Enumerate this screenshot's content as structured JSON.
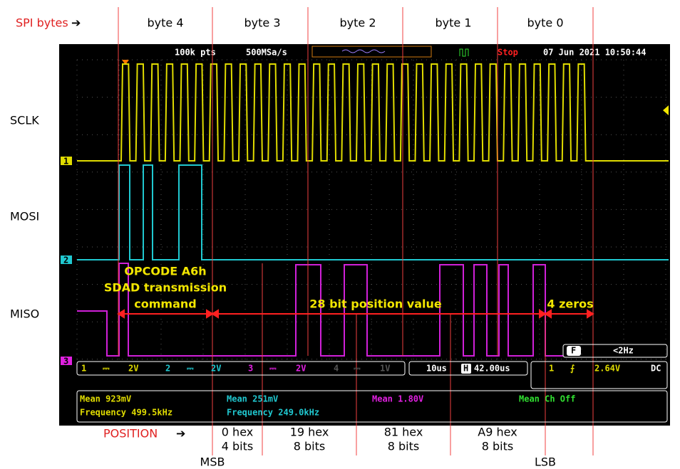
{
  "annotation": {
    "spi_label": "SPI bytes",
    "bytes": [
      "byte 4",
      "byte 3",
      "byte 2",
      "byte 1",
      "byte 0"
    ],
    "signals": [
      "SCLK",
      "MOSI",
      "MISO"
    ],
    "opcode": [
      "OPCODE A6h",
      "SDAD transmission",
      "command"
    ],
    "position_value": "28 bit position value",
    "zeros": "4 zeros",
    "position_label": "POSITION",
    "positions": [
      {
        "hex": "0 hex",
        "bits": "4 bits"
      },
      {
        "hex": "19 hex",
        "bits": "8 bits"
      },
      {
        "hex": "81 hex",
        "bits": "8 bits"
      },
      {
        "hex": "A9 hex",
        "bits": "8 bits"
      }
    ],
    "msb": "MSB",
    "lsb": "LSB"
  },
  "scope": {
    "points": "100k pts",
    "sample_rate": "500MSa/s",
    "state": "Stop",
    "datetime": "07 Jun 2021 10:50:44",
    "channels": [
      {
        "num": "1",
        "scale": "2V"
      },
      {
        "num": "2",
        "scale": "2V"
      },
      {
        "num": "3",
        "scale": "2V"
      },
      {
        "num": "4",
        "scale": "1V"
      }
    ],
    "timebase": "10us",
    "h_icon": "H",
    "delay": "42.00us",
    "trigger": {
      "num": "1",
      "level": "2.64V",
      "coupling": "DC"
    },
    "filter": {
      "icon": "F",
      "freq": "<2Hz"
    },
    "measurements": [
      "Mean 923mV",
      "Frequency 499.5kHz",
      "Mean 251mV",
      "Frequency 249.0kHz",
      "Mean 1.80V",
      "Mean Ch Off"
    ]
  }
}
